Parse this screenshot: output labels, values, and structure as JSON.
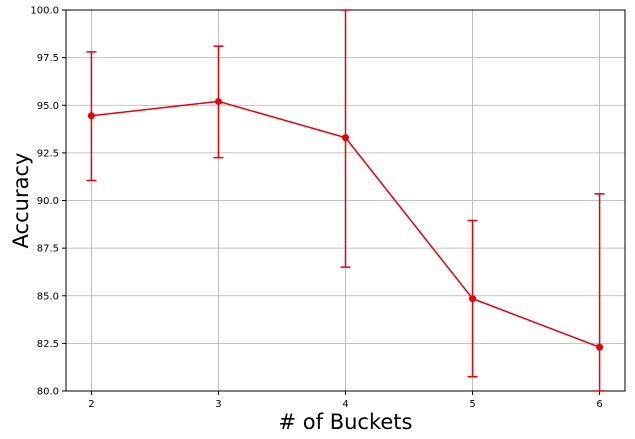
{
  "chart_data": {
    "type": "line",
    "title": "",
    "xlabel": "# of Buckets",
    "ylabel": "Accuracy",
    "x": [
      2,
      3,
      4,
      5,
      6
    ],
    "xticks": [
      2,
      3,
      4,
      5,
      6
    ],
    "xtick_labels": [
      "2",
      "3",
      "4",
      "5",
      "6"
    ],
    "xlim": [
      1.8,
      6.2
    ],
    "ylim": [
      80.0,
      100.0
    ],
    "yticks": [
      80.0,
      82.5,
      85.0,
      87.5,
      90.0,
      92.5,
      95.0,
      97.5,
      100.0
    ],
    "ytick_labels": [
      "80.0",
      "82.5",
      "85.0",
      "87.5",
      "90.0",
      "92.5",
      "95.0",
      "97.5",
      "100.0"
    ],
    "grid": true,
    "series": [
      {
        "values": [
          94.45,
          95.2,
          93.3,
          84.85,
          82.3
        ],
        "error_lower": [
          91.05,
          92.25,
          86.5,
          80.75,
          80.0
        ],
        "error_upper": [
          97.8,
          98.1,
          100.0,
          88.95,
          90.35
        ],
        "color": "#e8000b",
        "marker": "circle"
      }
    ]
  }
}
